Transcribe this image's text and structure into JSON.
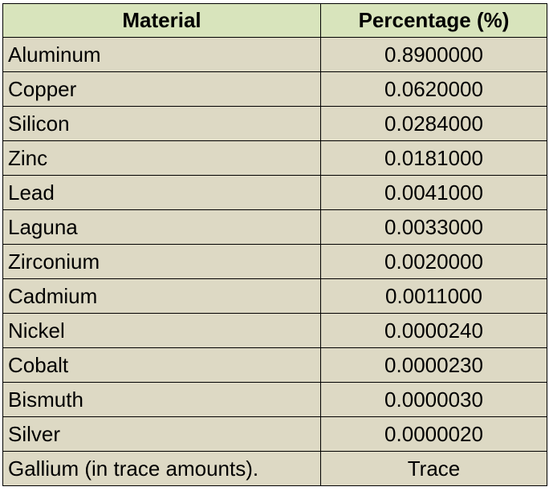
{
  "table": {
    "headers": [
      "Material",
      "Percentage (%)"
    ],
    "rows": [
      [
        "Aluminum",
        "0.8900000"
      ],
      [
        "Copper",
        "0.0620000"
      ],
      [
        "Silicon",
        "0.0284000"
      ],
      [
        "Zinc",
        "0.0181000"
      ],
      [
        "Lead",
        "0.0041000"
      ],
      [
        "Laguna",
        "0.0033000"
      ],
      [
        "Zirconium",
        "0.0020000"
      ],
      [
        "Cadmium",
        "0.0011000"
      ],
      [
        "Nickel",
        "0.0000240"
      ],
      [
        "Cobalt",
        "0.0000230"
      ],
      [
        "Bismuth",
        "0.0000030"
      ],
      [
        "Silver",
        "0.0000020"
      ],
      [
        "Gallium (in trace amounts).",
        "Trace"
      ]
    ]
  },
  "colors": {
    "header_bg": "#d8e4bc",
    "body_bg": "#ddd9c4"
  }
}
